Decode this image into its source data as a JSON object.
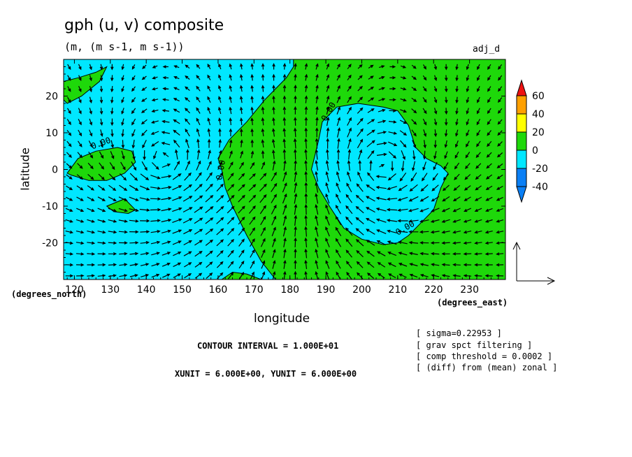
{
  "header": {
    "title": "gph (u, v) composite",
    "units": "(m, (m s-1, m s-1))",
    "experiment": "adj_d"
  },
  "axes": {
    "xlabel": "longitude",
    "ylabel": "latitude",
    "x_unit": "(degrees_east)",
    "y_unit": "(degrees_north)"
  },
  "footer": {
    "contour_interval": "CONTOUR INTERVAL = 1.000E+01",
    "vector_units": "XUNIT = 6.000E+00, YUNIT = 6.000E+00"
  },
  "notes": [
    "[ sigma=0.22953 ]",
    "[ grav spct filtering ]",
    "[ comp threshold = 0.0002 ]",
    "[ (diff) from (mean) zonal ]"
  ],
  "colors": {
    "band_neg40": "#0a7ff5",
    "band_neg20": "#00e7ff",
    "band_0": "#1ed80a",
    "band_20": "#ffff00",
    "band_40": "#ffa000",
    "band_60": "#ee1111"
  },
  "chart_data": {
    "type": "heatmap",
    "subtype": "filled contour with vector overlay",
    "xlim": [
      117,
      240
    ],
    "ylim": [
      -30,
      30
    ],
    "x_ticks": [
      "120",
      "130",
      "140",
      "150",
      "160",
      "170",
      "180",
      "190",
      "200",
      "210",
      "220",
      "230"
    ],
    "x_tick_values": [
      120,
      130,
      140,
      150,
      160,
      170,
      180,
      190,
      200,
      210,
      220,
      230
    ],
    "y_ticks": [
      "20",
      "10",
      "0",
      "-10",
      "-20"
    ],
    "y_tick_values": [
      20,
      10,
      0,
      -10,
      -20
    ],
    "colorbar": {
      "levels": [
        "60",
        "40",
        "20",
        "0",
        "-20",
        "-40"
      ],
      "level_values": [
        60,
        40,
        20,
        0,
        -20,
        -40
      ]
    },
    "contour_labels": [
      "0.00",
      "0.00",
      "0.00",
      "0.00"
    ],
    "regions": [
      {
        "band": "0 to 20",
        "boundary": [
          [
            160,
            3
          ],
          [
            163,
            8
          ],
          [
            168,
            13
          ],
          [
            173,
            19
          ],
          [
            176,
            22
          ],
          [
            179,
            25
          ],
          [
            181,
            28
          ],
          [
            181,
            30
          ],
          [
            240,
            30
          ],
          [
            240,
            -30
          ],
          [
            176,
            -30
          ],
          [
            172,
            -25
          ],
          [
            168,
            -18
          ],
          [
            164,
            -10
          ],
          [
            162,
            -5
          ],
          [
            161,
            0
          ]
        ]
      },
      {
        "band": "-20 to 0",
        "boundary": [
          [
            188,
            8
          ],
          [
            189,
            13
          ],
          [
            193,
            17
          ],
          [
            199,
            18
          ],
          [
            206,
            17
          ],
          [
            210,
            16
          ],
          [
            213,
            12
          ],
          [
            215,
            6
          ],
          [
            218,
            3
          ],
          [
            222,
            1
          ],
          [
            224,
            -1
          ],
          [
            222,
            -5
          ],
          [
            220,
            -11
          ],
          [
            216,
            -15
          ],
          [
            213,
            -18
          ],
          [
            210,
            -20
          ],
          [
            206,
            -20.5
          ],
          [
            200,
            -19
          ],
          [
            195,
            -16
          ],
          [
            191,
            -10
          ],
          [
            188,
            -5
          ],
          [
            186,
            0
          ]
        ]
      },
      {
        "band": "0 to 20",
        "boundary": [
          [
            118,
            -1
          ],
          [
            121,
            3
          ],
          [
            126,
            5
          ],
          [
            132,
            6
          ],
          [
            136,
            5
          ],
          [
            137,
            2
          ],
          [
            134,
            -1
          ],
          [
            129,
            -3
          ],
          [
            124,
            -3
          ],
          [
            119,
            -1.5
          ]
        ]
      },
      {
        "band": "0 to 20",
        "boundary": [
          [
            117,
            24
          ],
          [
            121,
            25
          ],
          [
            126,
            26.5
          ],
          [
            129,
            28
          ],
          [
            127,
            24
          ],
          [
            122,
            20
          ],
          [
            118,
            18
          ],
          [
            117,
            19
          ]
        ]
      },
      {
        "band": "0 to 20",
        "boundary": [
          [
            129,
            -10
          ],
          [
            134,
            -8
          ],
          [
            137,
            -11
          ],
          [
            135,
            -12
          ],
          [
            131,
            -11.5
          ]
        ]
      },
      {
        "band": "0 to 20",
        "boundary": [
          [
            161,
            -30
          ],
          [
            164,
            -28
          ],
          [
            168,
            -28.5
          ],
          [
            172,
            -30
          ]
        ]
      }
    ],
    "vector_field": {
      "description": "geostrophic-like wind vectors on a regular grid",
      "x_step": 3,
      "y_step": 3
    }
  }
}
